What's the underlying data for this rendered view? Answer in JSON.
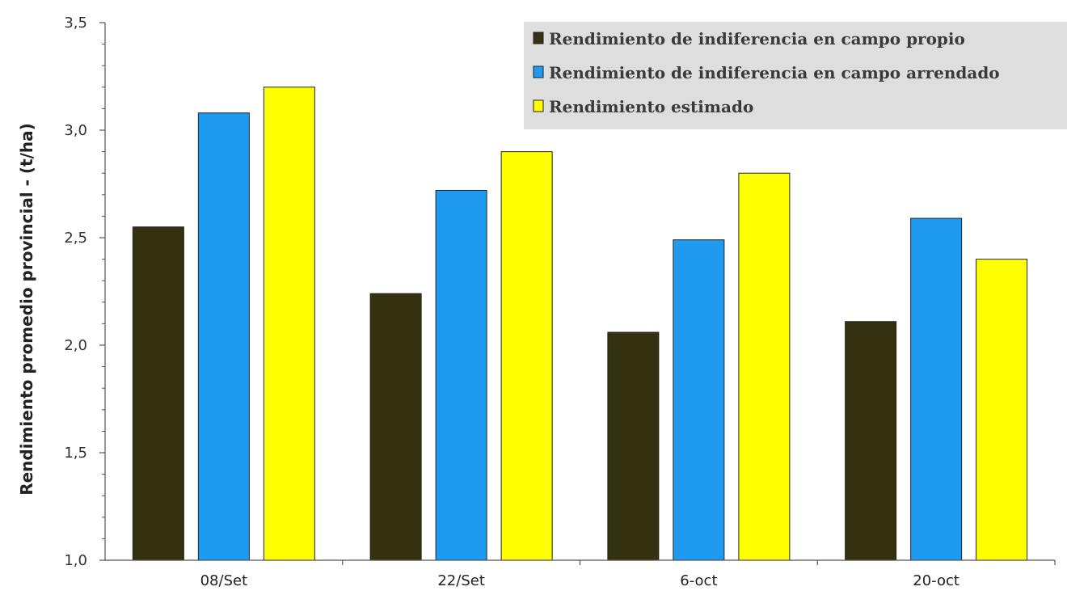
{
  "chart_data": {
    "type": "bar",
    "title": "",
    "xlabel": "",
    "ylabel": "Rendimiento promedio provincial - (t/ha)",
    "categories": [
      "08/Set",
      "22/Set",
      "6-oct",
      "20-oct"
    ],
    "series": [
      {
        "name": "Rendimiento de indiferencia en campo propio",
        "values": [
          2.55,
          2.24,
          2.06,
          2.11
        ],
        "color": "#33310f"
      },
      {
        "name": "Rendimiento de indiferencia en campo arrendado",
        "values": [
          3.08,
          2.72,
          2.49,
          2.59
        ],
        "color": "#1e9bf0"
      },
      {
        "name": "Rendimiento estimado",
        "values": [
          3.2,
          2.9,
          2.8,
          2.4
        ],
        "color": "#ffff00"
      }
    ],
    "ylim": [
      1.0,
      3.5
    ],
    "yticks": [
      "1,0",
      "1,5",
      "2,0",
      "2,5",
      "3,0",
      "3,5"
    ],
    "ytick_values": [
      1.0,
      1.5,
      2.0,
      2.5,
      3.0,
      3.5
    ],
    "grid": false,
    "legend_position": "top-right",
    "legend_background": "#dedede"
  }
}
